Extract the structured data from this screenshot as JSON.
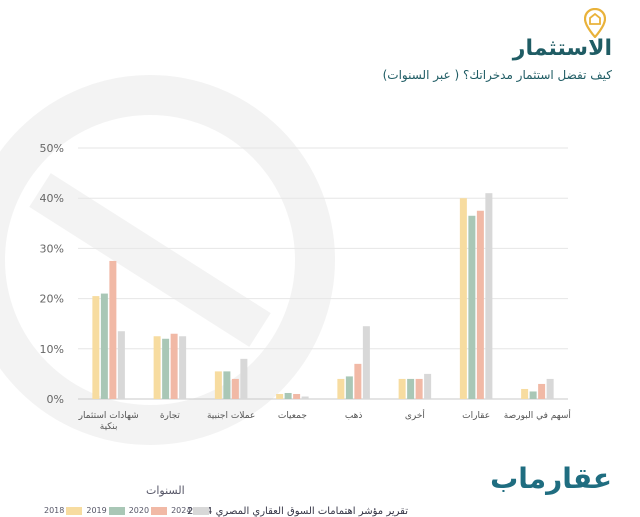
{
  "header": {
    "title": "الاستثمار",
    "subtitle": "كيف تفضل استثمار مدخراتك؟ ( عبر السنوات)"
  },
  "footer": {
    "brand": "عقارماب",
    "source": "تقرير مؤشر اهتمامات السوق العقاري المصري 2024"
  },
  "chart_data": {
    "type": "bar",
    "categories": [
      "أسهم في البورصة",
      "عقارات",
      "أخرى",
      "ذهب",
      "جمعيات",
      "عملات اجنبية",
      "تجارة",
      "شهادات استثمار بنكية"
    ],
    "category_lines": [
      [
        "أسهم في البورصة"
      ],
      [
        "عقارات"
      ],
      [
        "أخرى"
      ],
      [
        "ذهب"
      ],
      [
        "جمعيات"
      ],
      [
        "عملات اجنبية"
      ],
      [
        "تجارة"
      ],
      [
        "شهادات استثمار",
        "بنكية"
      ]
    ],
    "series": [
      {
        "name": "2018",
        "color": "#f7dca0",
        "values": [
          2,
          40,
          4,
          4,
          1,
          5.5,
          12.5,
          20.5
        ]
      },
      {
        "name": "2019",
        "color": "#a9c7b6",
        "values": [
          1.5,
          36.5,
          4,
          4.5,
          1.2,
          5.5,
          12,
          21
        ]
      },
      {
        "name": "2020",
        "color": "#f1b9a6",
        "values": [
          3,
          37.5,
          4,
          7,
          1,
          4,
          13,
          27.5
        ]
      },
      {
        "name": "2024",
        "color": "#d8d8d8",
        "values": [
          4,
          41,
          5,
          14.5,
          0.5,
          8,
          12.5,
          13.5
        ]
      }
    ],
    "legend_title": "السنوات",
    "yticks": [
      "0%",
      "10%",
      "20%",
      "30%",
      "40%",
      "50%"
    ],
    "ylim": [
      0,
      50
    ],
    "grid": true,
    "legend_position": "bottom-left"
  }
}
